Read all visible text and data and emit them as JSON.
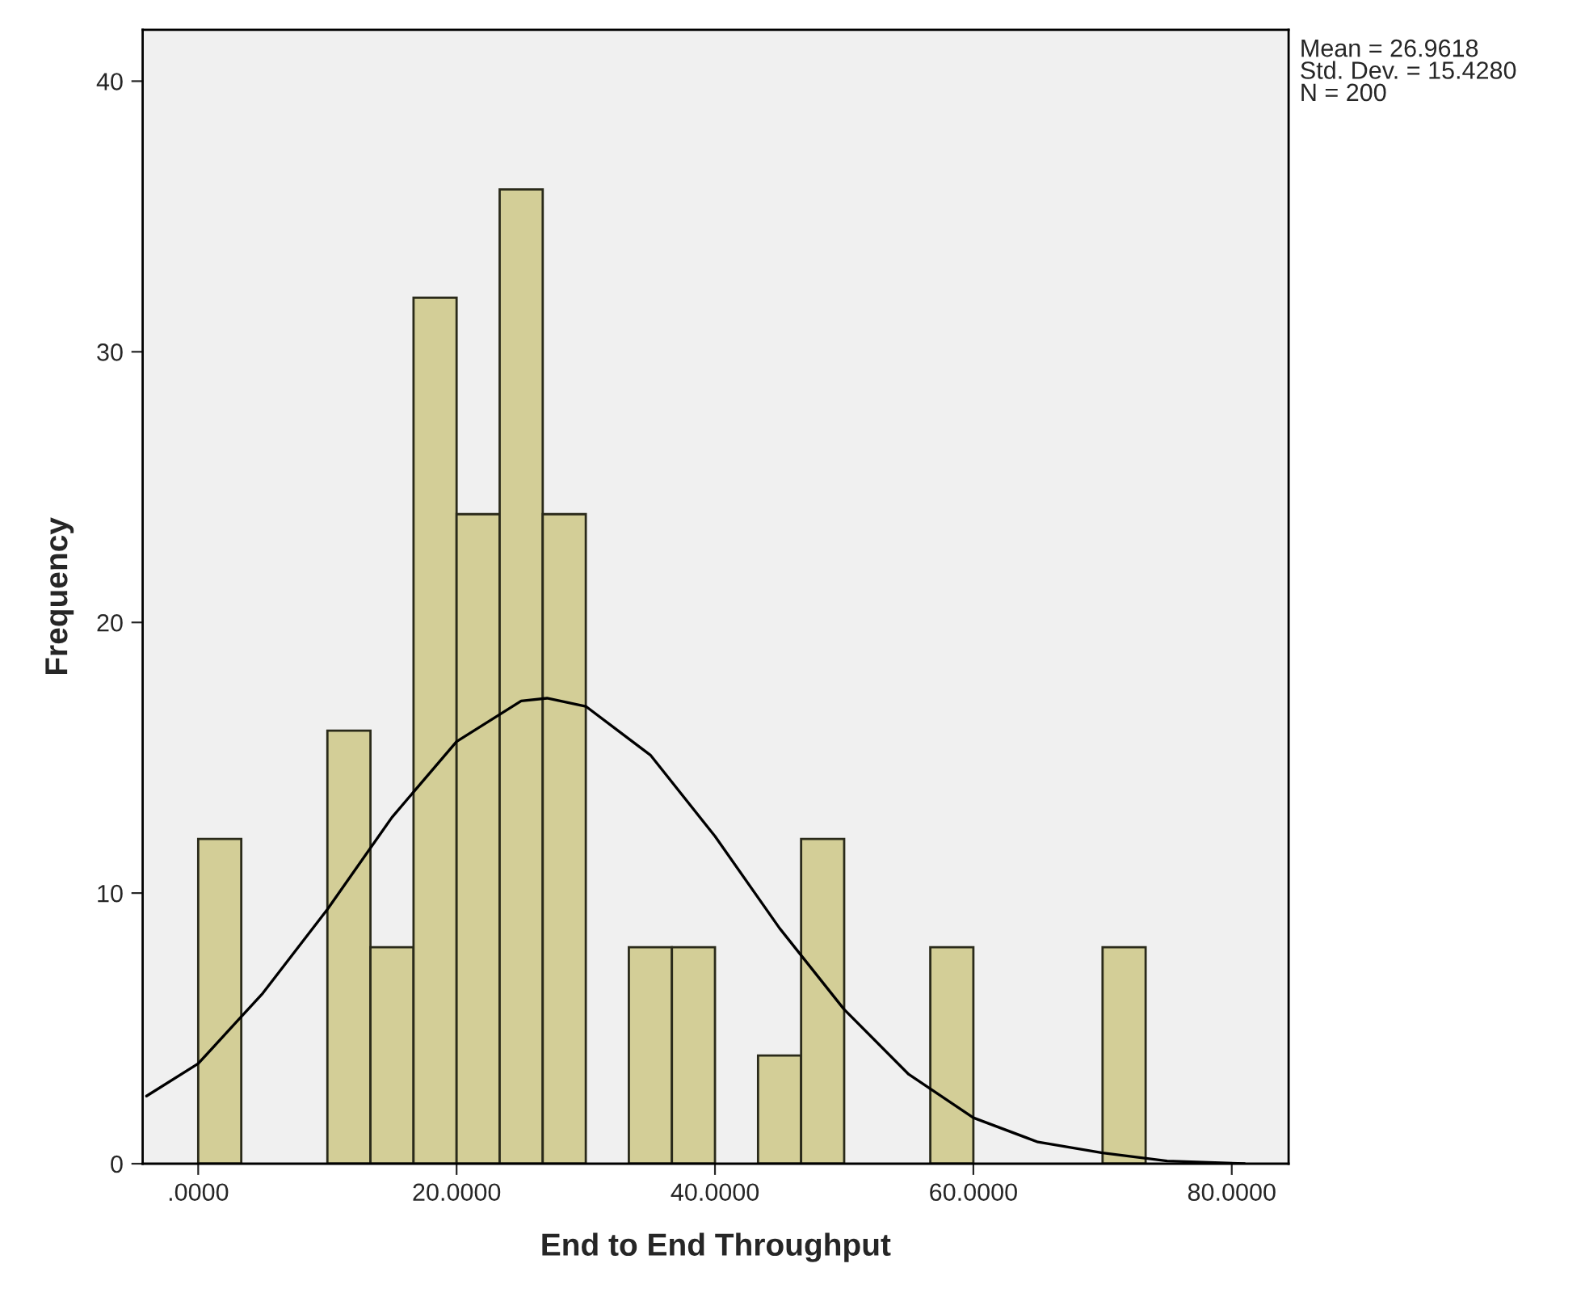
{
  "chart_data": {
    "type": "histogram",
    "xlabel": "End to End Throughput",
    "ylabel": "Frequency",
    "bins": [
      0,
      3.3333,
      6.6667,
      10,
      13.3333,
      16.6667,
      20,
      23.3333,
      26.6667,
      30,
      33.3333,
      36.6667,
      40,
      43.3333,
      46.6667,
      50,
      53.3333,
      56.6667,
      60,
      63.3333,
      66.6667,
      70,
      73.3333
    ],
    "values": [
      12,
      0,
      0,
      16,
      8,
      32,
      24,
      36,
      24,
      0,
      8,
      8,
      0,
      4,
      12,
      0,
      0,
      8,
      0,
      0,
      0,
      8
    ],
    "color": "#d3ce97",
    "series": [
      {
        "type": "line",
        "color": "#000000",
        "x": [
          -4,
          0,
          5,
          10,
          15,
          20,
          25,
          27,
          30,
          35,
          40,
          45,
          50,
          55,
          60,
          65,
          70,
          75,
          81
        ],
        "values": [
          2.5,
          3.7,
          6.3,
          9.4,
          12.8,
          15.6,
          17.1,
          17.2,
          16.9,
          15.1,
          12.1,
          8.7,
          5.7,
          3.3,
          1.7,
          0.8,
          0.4,
          0.1,
          0.0
        ]
      }
    ],
    "xlim": [
      -4.3,
      84.4
    ],
    "ylim": [
      0,
      41.9
    ],
    "xticks": [
      {
        "value": 0,
        "label": ".0000"
      },
      {
        "value": 20,
        "label": "20.0000"
      },
      {
        "value": 40,
        "label": "40.0000"
      },
      {
        "value": 60,
        "label": "60.0000"
      },
      {
        "value": 80,
        "label": "80.0000"
      }
    ],
    "yticks": [
      0,
      10,
      20,
      30,
      40
    ],
    "annotations": [
      "Mean = 26.9618\nStd. Dev. = 15.4280\nN = 200"
    ]
  }
}
